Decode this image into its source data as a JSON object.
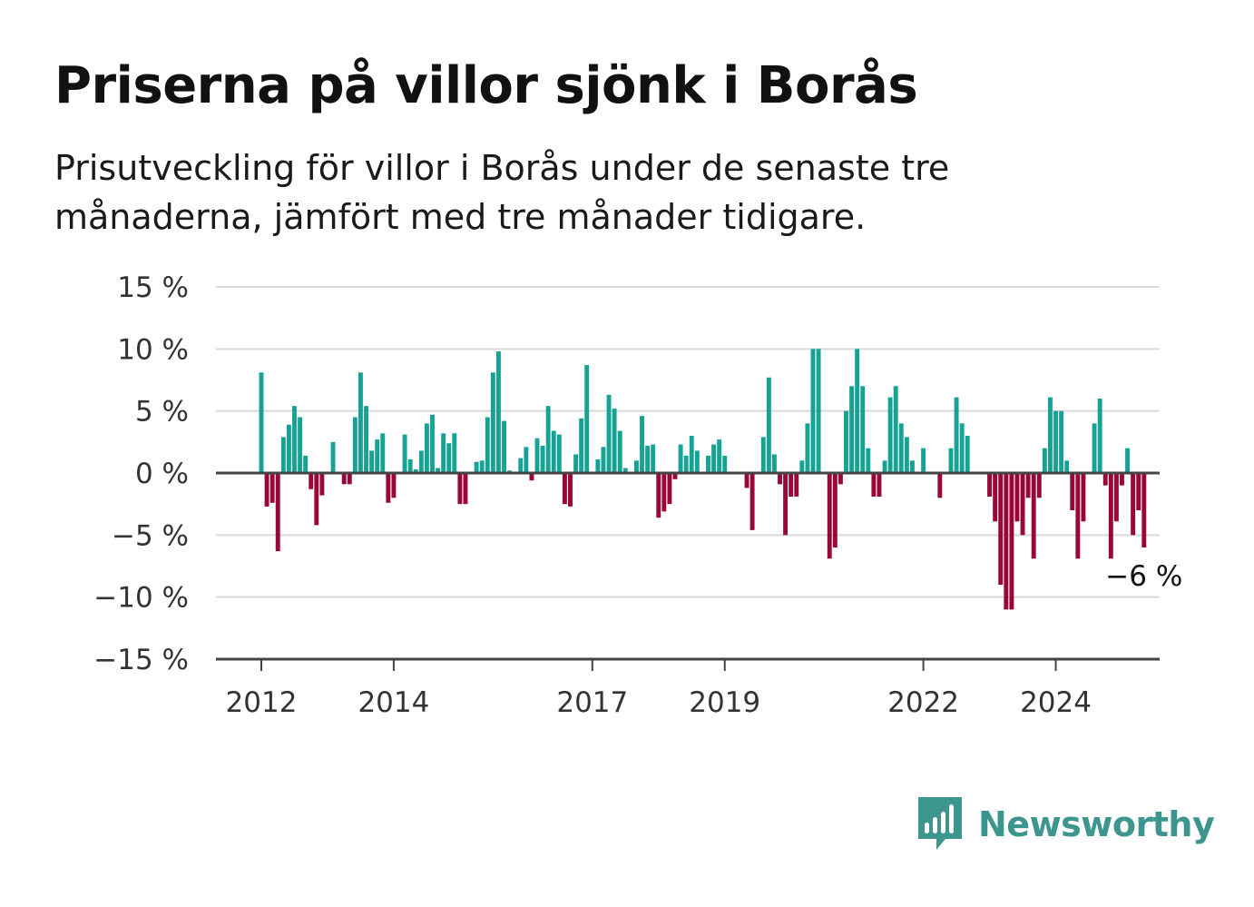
{
  "title": "Priserna på villor sjönk i Borås",
  "subtitle": "Prisutveckling för villor i Borås under de senaste tre månaderna, jämfört med tre månader tidigare.",
  "colors": {
    "positive": "#16a394",
    "negative": "#990638",
    "grid": "#d9d9d9",
    "axis": "#444444",
    "brand": "#3d968e"
  },
  "brand": {
    "name": "Newsworthy",
    "icon": "newsworthy-logo-icon"
  },
  "annotation": "−6 %",
  "chart_data": {
    "type": "bar",
    "x_start": "2012-01",
    "y_unit": "%",
    "ylim": [
      -15,
      15
    ],
    "grid": true,
    "yticks": [
      15,
      10,
      5,
      0,
      -5,
      -10,
      -15
    ],
    "ytick_labels": [
      "15 %",
      "10 %",
      "5 %",
      "0 %",
      "−5 %",
      "−10 %",
      "−15 %"
    ],
    "xticks": [
      "2012",
      "2014",
      "2017",
      "2019",
      "2022",
      "2024"
    ],
    "values": [
      8.1,
      -2.7,
      -2.4,
      -6.3,
      2.9,
      3.9,
      5.4,
      4.5,
      1.4,
      -1.3,
      -4.2,
      -1.8,
      0,
      2.5,
      0,
      -0.9,
      -0.9,
      4.5,
      8.1,
      5.4,
      1.8,
      2.7,
      3.2,
      -2.4,
      -2.0,
      0,
      3.1,
      1.1,
      0.3,
      1.8,
      4.0,
      4.7,
      0.4,
      3.2,
      2.4,
      3.2,
      -2.5,
      -2.5,
      0,
      0.9,
      1.0,
      4.5,
      8.1,
      9.8,
      4.2,
      0.2,
      0.1,
      1.2,
      2.1,
      -0.6,
      2.8,
      2.2,
      5.4,
      3.4,
      3.1,
      -2.5,
      -2.7,
      1.5,
      4.4,
      8.7,
      0,
      1.1,
      2.1,
      6.3,
      5.2,
      3.4,
      0.4,
      0,
      1.0,
      4.6,
      2.2,
      2.3,
      -3.6,
      -3.1,
      -2.5,
      -0.5,
      2.3,
      1.4,
      3.0,
      1.8,
      0,
      1.4,
      2.3,
      2.7,
      1.4,
      0,
      0,
      0,
      -1.2,
      -4.6,
      0.1,
      2.9,
      7.7,
      1.5,
      -0.9,
      -5.0,
      -1.9,
      -1.9,
      1.0,
      4.0,
      10.0,
      10.0,
      0,
      -6.9,
      -6.0,
      -0.9,
      5.0,
      7.0,
      10.0,
      7.0,
      2.0,
      -1.9,
      -1.9,
      1.0,
      6.1,
      7.0,
      4.0,
      2.9,
      1.0,
      0,
      2.0,
      0,
      0,
      -2.0,
      0,
      2.0,
      6.1,
      4.0,
      3.0,
      0,
      0,
      0,
      -1.9,
      -3.9,
      -9.0,
      -11.0,
      -11.0,
      -3.9,
      -5.0,
      -2.0,
      -6.9,
      -2.0,
      2.0,
      6.1,
      5.0,
      5.0,
      1.0,
      -3.0,
      -6.9,
      -3.9,
      0,
      4.0,
      6.0,
      -1.0,
      -6.9,
      -3.9,
      -1.0,
      2.0,
      -5.0,
      -3.0,
      -6.0
    ]
  }
}
